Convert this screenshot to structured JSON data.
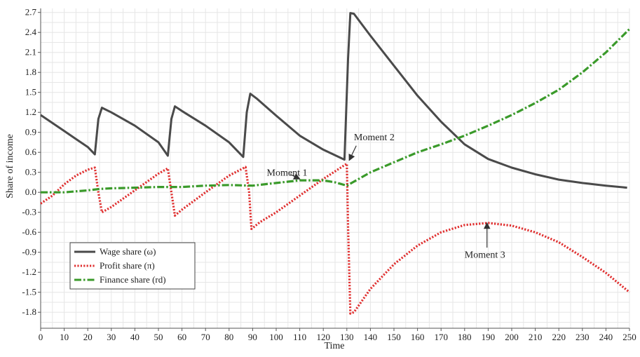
{
  "chart_data": {
    "type": "line",
    "xlabel": "Time",
    "ylabel": "Share of income",
    "xlim": [
      0,
      250
    ],
    "ylim": [
      -2.04,
      2.76
    ],
    "xticks": [
      0,
      10,
      20,
      30,
      40,
      50,
      60,
      70,
      80,
      90,
      100,
      110,
      120,
      130,
      140,
      150,
      160,
      170,
      180,
      190,
      200,
      210,
      220,
      230,
      240,
      250
    ],
    "yticks": [
      -1.8,
      -1.5,
      -1.2,
      -0.9,
      -0.6,
      -0.3,
      0.0,
      0.3,
      0.6,
      0.9,
      1.2,
      1.5,
      1.8,
      2.1,
      2.4,
      2.7
    ],
    "ytick_labels": [
      "-1.8",
      "-1.5",
      "-1.2",
      "-0.9",
      "-0.6",
      "-0.3",
      "0.0",
      "0.3",
      "0.6",
      "0.9",
      "1.2",
      "1.5",
      "1.8",
      "2.1",
      "2.4",
      "2.7"
    ],
    "grid": true,
    "legend_position": "bottom-left",
    "series": [
      {
        "name": "Wage share (ω)",
        "color": "#4a4a4a",
        "style": "solid",
        "points": [
          [
            0,
            1.16
          ],
          [
            5,
            1.04
          ],
          [
            10,
            0.92
          ],
          [
            15,
            0.8
          ],
          [
            20,
            0.68
          ],
          [
            23,
            0.57
          ],
          [
            24.5,
            1.1
          ],
          [
            26,
            1.27
          ],
          [
            30,
            1.2
          ],
          [
            40,
            1.0
          ],
          [
            50,
            0.75
          ],
          [
            54,
            0.55
          ],
          [
            55.5,
            1.1
          ],
          [
            57,
            1.29
          ],
          [
            60,
            1.22
          ],
          [
            70,
            1.0
          ],
          [
            80,
            0.75
          ],
          [
            86,
            0.53
          ],
          [
            87.5,
            1.2
          ],
          [
            89,
            1.48
          ],
          [
            92,
            1.4
          ],
          [
            100,
            1.15
          ],
          [
            110,
            0.85
          ],
          [
            120,
            0.64
          ],
          [
            129,
            0.49
          ],
          [
            130.5,
            2.0
          ],
          [
            131.5,
            2.69
          ],
          [
            133,
            2.68
          ],
          [
            140,
            2.35
          ],
          [
            150,
            1.9
          ],
          [
            160,
            1.45
          ],
          [
            170,
            1.06
          ],
          [
            180,
            0.72
          ],
          [
            190,
            0.5
          ],
          [
            200,
            0.37
          ],
          [
            210,
            0.27
          ],
          [
            220,
            0.19
          ],
          [
            230,
            0.14
          ],
          [
            240,
            0.1
          ],
          [
            249,
            0.07
          ]
        ]
      },
      {
        "name": "Profit share (π)",
        "color": "#e03030",
        "style": "dotted",
        "points": [
          [
            0,
            -0.17
          ],
          [
            5,
            -0.05
          ],
          [
            10,
            0.12
          ],
          [
            15,
            0.25
          ],
          [
            20,
            0.34
          ],
          [
            23,
            0.37
          ],
          [
            24.5,
            0.0
          ],
          [
            26,
            -0.3
          ],
          [
            30,
            -0.22
          ],
          [
            40,
            0.03
          ],
          [
            50,
            0.28
          ],
          [
            54,
            0.36
          ],
          [
            55.5,
            0.0
          ],
          [
            57,
            -0.35
          ],
          [
            60,
            -0.26
          ],
          [
            70,
            0.0
          ],
          [
            80,
            0.25
          ],
          [
            87,
            0.38
          ],
          [
            88.5,
            0.0
          ],
          [
            89.5,
            -0.55
          ],
          [
            93,
            -0.45
          ],
          [
            100,
            -0.3
          ],
          [
            110,
            -0.05
          ],
          [
            120,
            0.2
          ],
          [
            130,
            0.43
          ],
          [
            130.5,
            -0.5
          ],
          [
            131.5,
            -1.82
          ],
          [
            133,
            -1.8
          ],
          [
            140,
            -1.45
          ],
          [
            150,
            -1.08
          ],
          [
            160,
            -0.8
          ],
          [
            170,
            -0.6
          ],
          [
            180,
            -0.49
          ],
          [
            190,
            -0.46
          ],
          [
            200,
            -0.5
          ],
          [
            210,
            -0.6
          ],
          [
            220,
            -0.75
          ],
          [
            230,
            -0.97
          ],
          [
            240,
            -1.21
          ],
          [
            250,
            -1.5
          ]
        ]
      },
      {
        "name": "Finance share (rd)",
        "color": "#3a9a2a",
        "style": "dashdot",
        "points": [
          [
            0,
            0.0
          ],
          [
            10,
            0.0
          ],
          [
            20,
            0.03
          ],
          [
            25,
            0.05
          ],
          [
            30,
            0.06
          ],
          [
            40,
            0.07
          ],
          [
            50,
            0.08
          ],
          [
            60,
            0.08
          ],
          [
            70,
            0.1
          ],
          [
            80,
            0.11
          ],
          [
            90,
            0.1
          ],
          [
            100,
            0.14
          ],
          [
            110,
            0.18
          ],
          [
            120,
            0.18
          ],
          [
            125,
            0.15
          ],
          [
            130,
            0.1
          ],
          [
            132,
            0.14
          ],
          [
            140,
            0.3
          ],
          [
            150,
            0.45
          ],
          [
            160,
            0.6
          ],
          [
            170,
            0.72
          ],
          [
            180,
            0.85
          ],
          [
            190,
            1.0
          ],
          [
            200,
            1.16
          ],
          [
            210,
            1.34
          ],
          [
            220,
            1.54
          ],
          [
            230,
            1.8
          ],
          [
            240,
            2.1
          ],
          [
            250,
            2.45
          ]
        ]
      }
    ],
    "annotations": [
      {
        "text": "Moment 1",
        "tx": 96,
        "ty": 0.25,
        "ax": 110,
        "ay": 0.2,
        "tail": [
          106,
          0.27
        ]
      },
      {
        "text": "Moment 2",
        "tx": 133,
        "ty": 0.78,
        "ax": 131,
        "ay": 0.48,
        "tail": [
          134,
          0.7
        ]
      },
      {
        "text": "Moment 3",
        "tx": 180,
        "ty": -0.98,
        "ax": 189.5,
        "ay": -0.46,
        "tail": [
          189.5,
          -0.83
        ]
      }
    ],
    "legend_entries": [
      "Wage share (ω)",
      "Profit share (π)",
      "Finance share (rd)"
    ]
  }
}
